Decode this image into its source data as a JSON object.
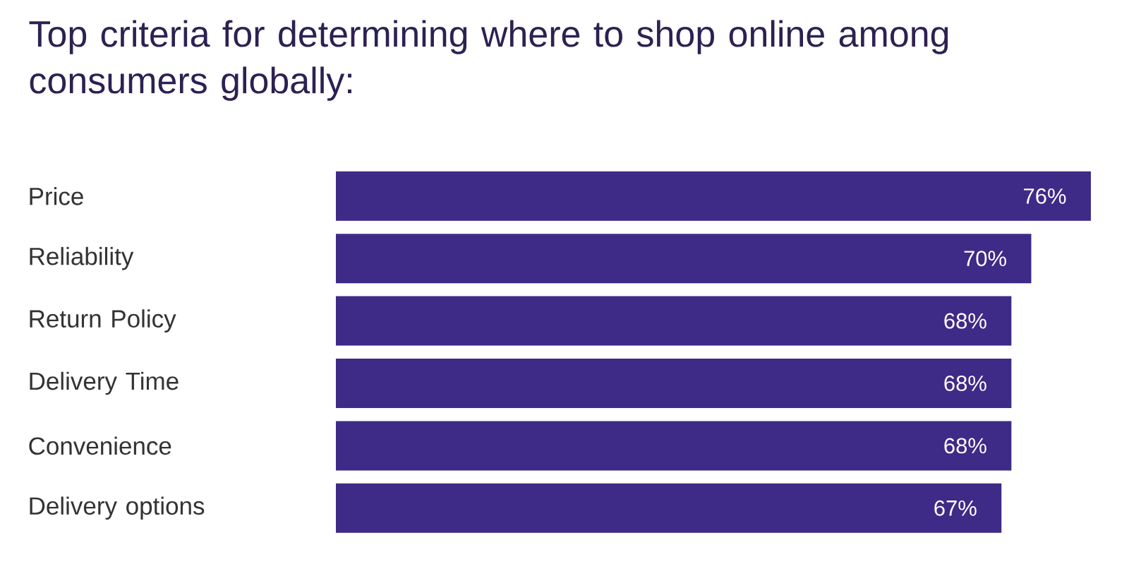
{
  "chart_data": {
    "type": "bar",
    "orientation": "horizontal",
    "title": "Top criteria for determining where to shop online among consumers globally:",
    "categories": [
      "Price",
      "Reliability",
      "Return Policy",
      "Delivery Time",
      "Convenience",
      "Delivery options"
    ],
    "values": [
      76,
      70,
      68,
      68,
      68,
      67
    ],
    "value_labels": [
      "76%",
      "70%",
      "68%",
      "68%",
      "68%",
      "67%"
    ],
    "color": "#3e2a87"
  }
}
